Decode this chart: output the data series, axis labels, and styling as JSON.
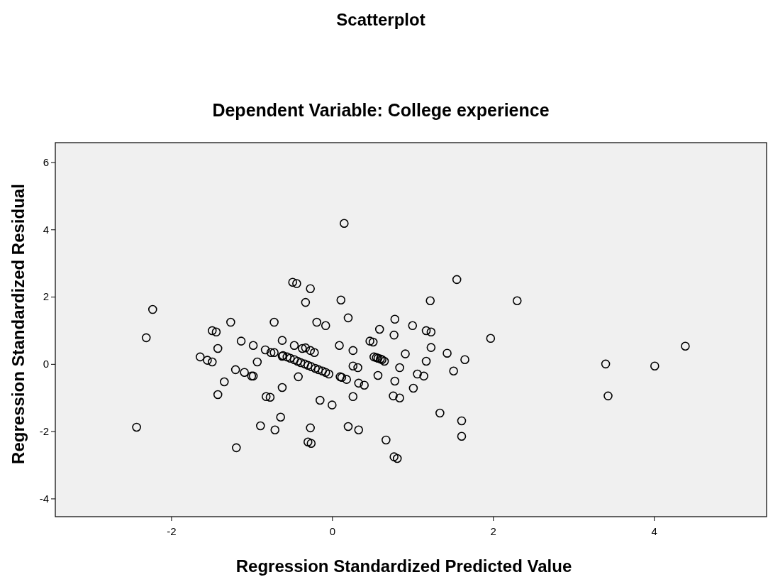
{
  "chart_data": {
    "type": "scatter",
    "title": "Scatterplot",
    "subtitle": "Dependent Variable: College experience",
    "xlabel": "Regression Standardized Predicted Value",
    "ylabel": "Regression Standardized Residual",
    "xlim": [
      -3.44,
      5.4
    ],
    "ylim": [
      -4.54,
      6.58
    ],
    "xticks": [
      -2,
      0,
      2,
      4
    ],
    "yticks": [
      -4,
      -2,
      0,
      2,
      4,
      6
    ],
    "marker": "circle",
    "series": [
      {
        "color": "#000000",
        "x": [
          -2.43,
          -2.23,
          -2.31,
          -1.64,
          -1.55,
          -1.49,
          -1.49,
          -1.44,
          -1.42,
          -1.42,
          -1.34,
          -1.26,
          -1.2,
          -1.19,
          -1.13,
          -1.09,
          -1.0,
          -0.98,
          -0.98,
          -0.93,
          -0.89,
          -0.83,
          -0.82,
          -0.77,
          -0.76,
          -0.72,
          -0.72,
          -0.71,
          -0.64,
          -0.62,
          -0.62,
          -0.62,
          -0.49,
          -0.44,
          -0.27,
          -0.33,
          0.11,
          0.15,
          -0.19,
          -0.08,
          0.2,
          -0.47,
          -0.37,
          -0.33,
          -0.27,
          -0.22,
          0.09,
          0.26,
          0.47,
          0.51,
          0.59,
          0.78,
          0.77,
          1.0,
          1.17,
          1.23,
          1.22,
          1.55,
          1.23,
          1.43,
          1.51,
          0.91,
          0.84,
          1.17,
          1.06,
          1.14,
          1.01,
          0.78,
          0.76,
          0.84,
          1.34,
          0.67,
          0.77,
          0.81,
          0.57,
          0.26,
          0.32,
          0.33,
          0.4,
          0.26,
          0.2,
          0.33,
          0.1,
          0.12,
          0.18,
          -0.15,
          0.0,
          -0.27,
          -0.3,
          -0.26,
          -0.42,
          -0.61,
          -0.56,
          -0.52,
          -0.47,
          -0.43,
          -0.39,
          -0.34,
          -0.3,
          -0.26,
          -0.21,
          -0.17,
          -0.12,
          -0.08,
          -0.04,
          0.52,
          0.55,
          0.57,
          0.6,
          0.62,
          0.65,
          2.3,
          1.97,
          1.65,
          1.61,
          1.61,
          3.4,
          3.43,
          4.01,
          4.39
        ],
        "values": [
          -1.88,
          1.62,
          0.78,
          0.21,
          0.11,
          0.06,
          0.99,
          0.95,
          0.46,
          -0.91,
          -0.53,
          1.24,
          -0.17,
          -2.49,
          0.68,
          -0.25,
          -0.36,
          -0.36,
          0.55,
          0.06,
          -1.84,
          0.42,
          -0.97,
          -0.99,
          0.34,
          0.34,
          1.24,
          -1.96,
          -1.58,
          -0.7,
          0.7,
          0.23,
          2.43,
          2.39,
          2.24,
          1.83,
          1.9,
          4.18,
          1.24,
          1.14,
          1.37,
          0.55,
          0.46,
          0.48,
          0.4,
          0.34,
          0.55,
          0.4,
          0.68,
          0.65,
          1.03,
          1.33,
          0.86,
          1.14,
          0.99,
          0.95,
          1.88,
          2.51,
          0.49,
          0.32,
          -0.21,
          0.3,
          -0.11,
          0.08,
          -0.3,
          -0.36,
          -0.72,
          -0.51,
          -0.95,
          -1.01,
          -1.46,
          -2.26,
          -2.76,
          -2.81,
          -0.34,
          -0.06,
          -0.11,
          -0.57,
          -0.63,
          -0.97,
          -1.86,
          -1.96,
          -0.38,
          -0.4,
          -0.46,
          -1.08,
          -1.22,
          -1.9,
          -2.32,
          -2.36,
          -0.38,
          0.25,
          0.21,
          0.17,
          0.13,
          0.08,
          0.04,
          0.0,
          -0.04,
          -0.08,
          -0.13,
          -0.17,
          -0.21,
          -0.25,
          -0.3,
          0.21,
          0.19,
          0.17,
          0.15,
          0.13,
          0.08,
          1.88,
          0.76,
          0.13,
          -1.69,
          -2.15,
          0.0,
          -0.95,
          -0.06,
          0.53
        ]
      }
    ]
  }
}
